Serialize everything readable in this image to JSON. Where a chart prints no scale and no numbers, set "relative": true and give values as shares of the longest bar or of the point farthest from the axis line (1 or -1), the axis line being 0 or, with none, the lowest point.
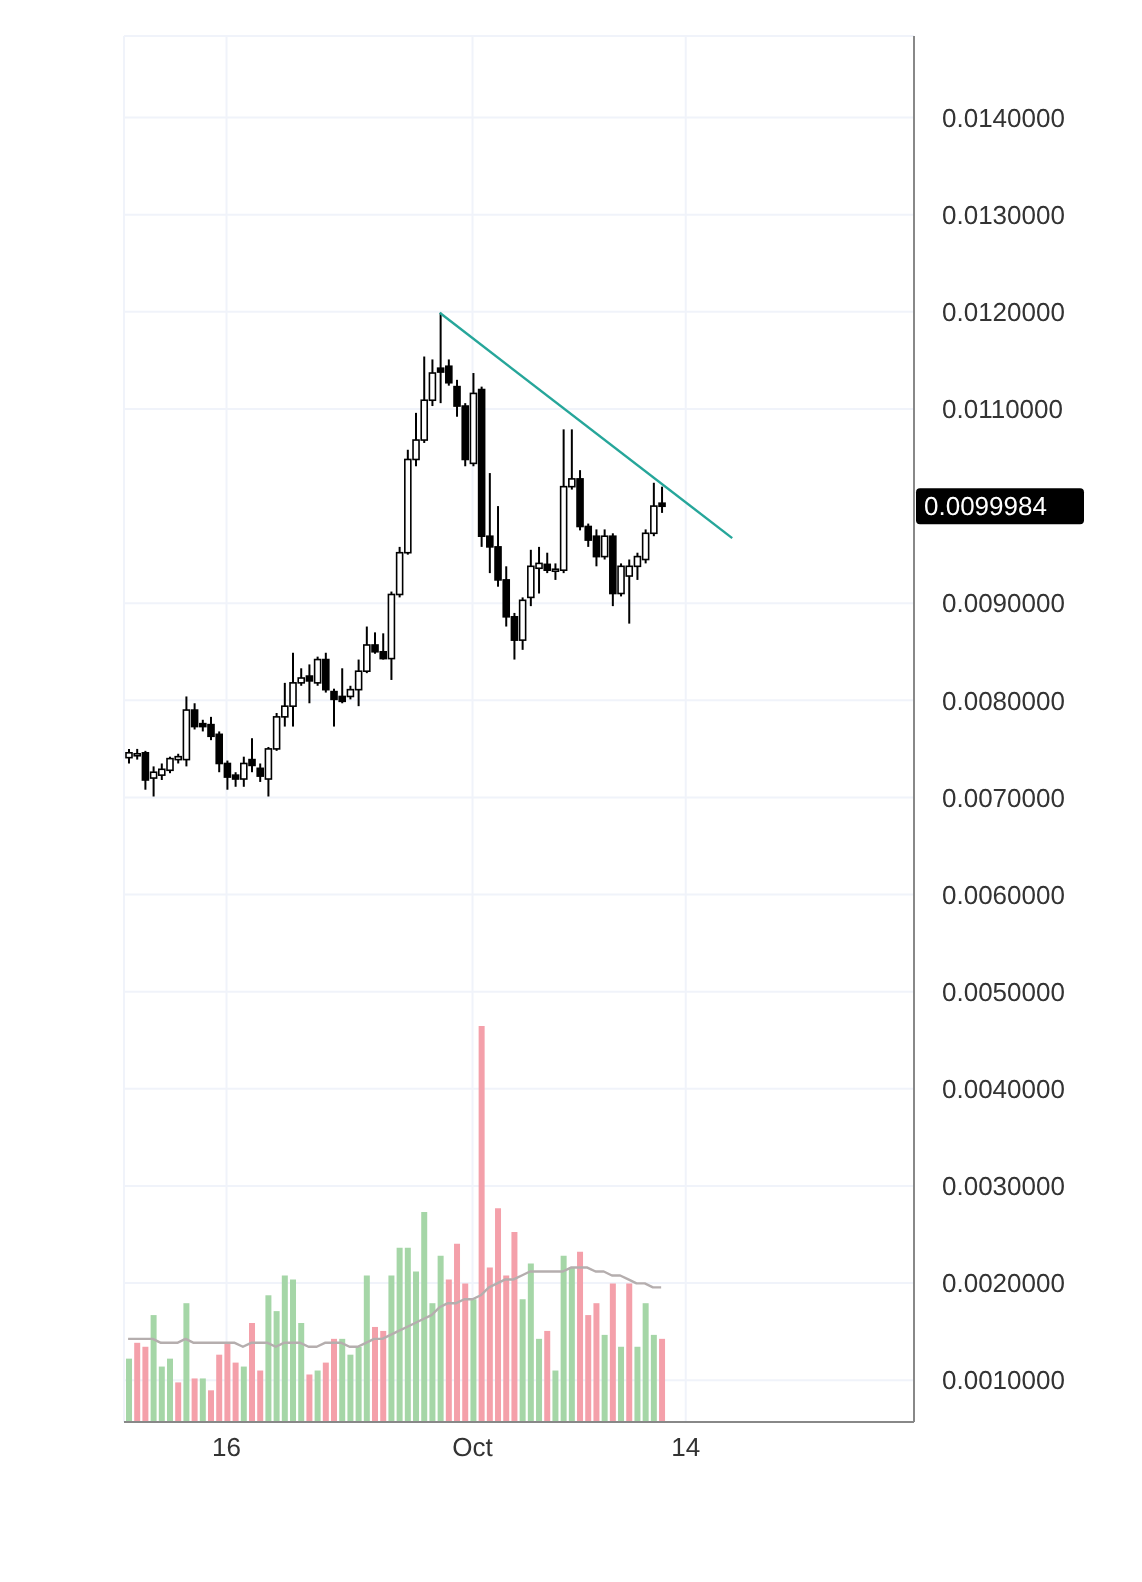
{
  "chart_data": [
    {
      "type": "candlestick",
      "grid": true,
      "x": [
        "--09-10T00:00",
        "--09-10T12:00",
        "--09-11T00:00",
        "--09-11T12:00",
        "--09-12T00:00",
        "--09-12T12:00",
        "--09-13T00:00",
        "--09-13T12:00",
        "--09-14T00:00",
        "--09-14T12:00",
        "--09-15T00:00",
        "--09-15T12:00",
        "--09-16T00:00",
        "--09-16T12:00",
        "--09-17T00:00",
        "--09-17T12:00",
        "--09-18T00:00",
        "--09-18T12:00",
        "--09-19T00:00",
        "--09-19T12:00",
        "--09-20T00:00",
        "--09-20T12:00",
        "--09-21T00:00",
        "--09-21T12:00",
        "--09-22T00:00",
        "--09-22T12:00",
        "--09-23T00:00",
        "--09-23T12:00",
        "--09-24T00:00",
        "--09-24T12:00",
        "--09-25T00:00",
        "--09-25T12:00",
        "--09-26T00:00",
        "--09-26T12:00",
        "--09-27T00:00",
        "--09-27T12:00",
        "--09-28T00:00",
        "--09-28T12:00",
        "--09-29T00:00",
        "--09-29T12:00",
        "--09-30T00:00",
        "--09-30T12:00",
        "--10-01T00:00",
        "--10-01T12:00",
        "--10-02T00:00",
        "--10-02T12:00",
        "--10-03T00:00",
        "--10-03T12:00",
        "--10-04T00:00",
        "--10-04T12:00",
        "--10-05T00:00",
        "--10-05T12:00",
        "--10-06T00:00",
        "--10-06T12:00",
        "--10-07T00:00",
        "--10-07T12:00",
        "--10-08T00:00",
        "--10-08T12:00",
        "--10-09T00:00",
        "--10-09T12:00",
        "--10-10T00:00",
        "--10-10T12:00",
        "--10-11T00:00",
        "--10-11T12:00",
        "--10-12T00:00",
        "--10-12T12:00"
      ],
      "ohlc": [
        [
          0.00741,
          0.0075,
          0.00735,
          0.00746
        ],
        [
          0.00744,
          0.0075,
          0.00739,
          0.00745
        ],
        [
          0.00746,
          0.00748,
          0.00708,
          0.00718
        ],
        [
          0.0072,
          0.00732,
          0.00701,
          0.00726
        ],
        [
          0.00723,
          0.00735,
          0.00718,
          0.00729
        ],
        [
          0.00728,
          0.00742,
          0.00725,
          0.0074
        ],
        [
          0.00739,
          0.00745,
          0.00735,
          0.00742
        ],
        [
          0.00739,
          0.00804,
          0.00732,
          0.0079
        ],
        [
          0.0079,
          0.00797,
          0.0077,
          0.00773
        ],
        [
          0.00776,
          0.0078,
          0.00768,
          0.00773
        ],
        [
          0.00775,
          0.00783,
          0.00759,
          0.00763
        ],
        [
          0.00765,
          0.00768,
          0.00726,
          0.00735
        ],
        [
          0.00735,
          0.00738,
          0.00708,
          0.00721
        ],
        [
          0.00723,
          0.00726,
          0.00711,
          0.00719
        ],
        [
          0.00719,
          0.00742,
          0.00711,
          0.00735
        ],
        [
          0.00739,
          0.00761,
          0.00726,
          0.00733
        ],
        [
          0.0073,
          0.00735,
          0.00716,
          0.00722
        ],
        [
          0.00719,
          0.00752,
          0.00701,
          0.0075
        ],
        [
          0.0075,
          0.00787,
          0.00748,
          0.00783
        ],
        [
          0.00783,
          0.00818,
          0.00773,
          0.00794
        ],
        [
          0.00794,
          0.00849,
          0.00773,
          0.00818
        ],
        [
          0.00818,
          0.00833,
          0.00815,
          0.00823
        ],
        [
          0.00825,
          0.00837,
          0.00797,
          0.0082
        ],
        [
          0.00818,
          0.00845,
          0.00815,
          0.00842
        ],
        [
          0.00842,
          0.00849,
          0.00808,
          0.00811
        ],
        [
          0.00809,
          0.00812,
          0.00773,
          0.00801
        ],
        [
          0.00804,
          0.00833,
          0.00797,
          0.00799
        ],
        [
          0.00804,
          0.00815,
          0.00801,
          0.00811
        ],
        [
          0.00811,
          0.00842,
          0.00794,
          0.0083
        ],
        [
          0.0083,
          0.00876,
          0.00828,
          0.00857
        ],
        [
          0.00857,
          0.0087,
          0.00848,
          0.0085
        ],
        [
          0.0085,
          0.00869,
          0.00842,
          0.00843
        ],
        [
          0.00843,
          0.00912,
          0.00821,
          0.00909
        ],
        [
          0.00909,
          0.00958,
          0.00906,
          0.00952
        ],
        [
          0.00952,
          0.01058,
          0.0095,
          0.01048
        ],
        [
          0.01048,
          0.01096,
          0.01041,
          0.01068
        ],
        [
          0.01068,
          0.01154,
          0.01065,
          0.01109
        ],
        [
          0.01109,
          0.01151,
          0.01103,
          0.01137
        ],
        [
          0.01142,
          0.01199,
          0.01106,
          0.01138
        ],
        [
          0.01144,
          0.01151,
          0.01124,
          0.01127
        ],
        [
          0.01123,
          0.0113,
          0.01092,
          0.01103
        ],
        [
          0.01103,
          0.01106,
          0.01041,
          0.01048
        ],
        [
          0.01044,
          0.01137,
          0.01041,
          0.01116
        ],
        [
          0.0112,
          0.01123,
          0.00958,
          0.00969
        ],
        [
          0.00969,
          0.01034,
          0.00931,
          0.00958
        ],
        [
          0.00958,
          0.01,
          0.00917,
          0.00924
        ],
        [
          0.00924,
          0.00938,
          0.00876,
          0.00886
        ],
        [
          0.00886,
          0.0089,
          0.00842,
          0.00862
        ],
        [
          0.00862,
          0.00906,
          0.00852,
          0.00903
        ],
        [
          0.00906,
          0.00955,
          0.00897,
          0.00938
        ],
        [
          0.00936,
          0.00958,
          0.0091,
          0.00941
        ],
        [
          0.0094,
          0.00952,
          0.00931,
          0.00934
        ],
        [
          0.00933,
          0.00941,
          0.00924,
          0.00935
        ],
        [
          0.00934,
          0.01079,
          0.00931,
          0.0102
        ],
        [
          0.0102,
          0.01079,
          0.01017,
          0.01028
        ],
        [
          0.01028,
          0.01037,
          0.00975,
          0.00979
        ],
        [
          0.00979,
          0.00982,
          0.00958,
          0.00965
        ],
        [
          0.00969,
          0.00976,
          0.00938,
          0.00948
        ],
        [
          0.00948,
          0.00976,
          0.00945,
          0.00969
        ],
        [
          0.00969,
          0.00972,
          0.00897,
          0.0091
        ],
        [
          0.0091,
          0.00941,
          0.00907,
          0.00938
        ],
        [
          0.00928,
          0.00945,
          0.00879,
          0.00938
        ],
        [
          0.00938,
          0.00952,
          0.00924,
          0.00948
        ],
        [
          0.00945,
          0.00976,
          0.00941,
          0.00972
        ],
        [
          0.00972,
          0.01024,
          0.00969,
          0.01
        ],
        [
          0.01003,
          0.0102,
          0.00993,
          0.0099984
        ]
      ],
      "series": [
        {
          "type": "line",
          "color": "#26a69a",
          "x": [
            "--09-29T00:00",
            "--10-16T20:00"
          ],
          "values": [
            0.01199,
            0.00967
          ]
        }
      ],
      "xlim": [
        "--09-09T18:00",
        "--10-27T22:00"
      ],
      "xticks": [
        {
          "value": "--09-16",
          "label": "16"
        },
        {
          "value": "--10-01",
          "label": "Oct"
        },
        {
          "value": "--10-14",
          "label": "14"
        }
      ],
      "ylim": [
        0.00057,
        0.01484
      ],
      "yticks": [
        {
          "value": 0.001,
          "label": "0.0010000"
        },
        {
          "value": 0.002,
          "label": "0.0020000"
        },
        {
          "value": 0.003,
          "label": "0.0030000"
        },
        {
          "value": 0.004,
          "label": "0.0040000"
        },
        {
          "value": 0.005,
          "label": "0.0050000"
        },
        {
          "value": 0.006,
          "label": "0.0060000"
        },
        {
          "value": 0.007,
          "label": "0.0070000"
        },
        {
          "value": 0.008,
          "label": "0.0080000"
        },
        {
          "value": 0.009,
          "label": "0.0090000"
        },
        {
          "value": 0.011,
          "label": "0.0110000"
        },
        {
          "value": 0.012,
          "label": "0.0120000"
        },
        {
          "value": 0.013,
          "label": "0.0130000"
        },
        {
          "value": 0.014,
          "label": "0.0140000"
        }
      ],
      "annotations": [
        "0.0099984"
      ]
    },
    {
      "type": "bar",
      "relative": true,
      "tick_labels": false,
      "xticks": [
        {
          "value": "--09-16",
          "label": "16"
        },
        {
          "value": "--10-01",
          "label": "Oct"
        },
        {
          "value": "--10-14",
          "label": "14"
        }
      ],
      "x": [
        "--09-10T00:00",
        "--09-10T12:00",
        "--09-11T00:00",
        "--09-11T12:00",
        "--09-12T00:00",
        "--09-12T12:00",
        "--09-13T00:00",
        "--09-13T12:00",
        "--09-14T00:00",
        "--09-14T12:00",
        "--09-15T00:00",
        "--09-15T12:00",
        "--09-16T00:00",
        "--09-16T12:00",
        "--09-17T00:00",
        "--09-17T12:00",
        "--09-18T00:00",
        "--09-18T12:00",
        "--09-19T00:00",
        "--09-19T12:00",
        "--09-20T00:00",
        "--09-20T12:00",
        "--09-21T00:00",
        "--09-21T12:00",
        "--09-22T00:00",
        "--09-22T12:00",
        "--09-23T00:00",
        "--09-23T12:00",
        "--09-24T00:00",
        "--09-24T12:00",
        "--09-25T00:00",
        "--09-25T12:00",
        "--09-26T00:00",
        "--09-26T12:00",
        "--09-27T00:00",
        "--09-27T12:00",
        "--09-28T00:00",
        "--09-28T12:00",
        "--09-29T00:00",
        "--09-29T12:00",
        "--09-30T00:00",
        "--09-30T12:00",
        "--10-01T00:00",
        "--10-01T12:00",
        "--10-02T00:00",
        "--10-02T12:00",
        "--10-03T00:00",
        "--10-03T12:00",
        "--10-04T00:00",
        "--10-04T12:00",
        "--10-05T00:00",
        "--10-05T12:00",
        "--10-06T00:00",
        "--10-06T12:00",
        "--10-07T00:00",
        "--10-07T12:00",
        "--10-08T00:00",
        "--10-08T12:00",
        "--10-09T00:00",
        "--10-09T12:00",
        "--10-10T00:00",
        "--10-10T12:00",
        "--10-11T00:00",
        "--10-11T12:00",
        "--10-12T00:00",
        "--10-12T12:00"
      ],
      "xlim": [
        "--09-09T18:00",
        "--10-27T22:00"
      ],
      "series": [
        {
          "type": "bar",
          "colors": [
            "#a5d6a7",
            "#f4a0aa",
            "#f4a0aa",
            "#a5d6a7",
            "#a5d6a7",
            "#a5d6a7",
            "#f4a0aa",
            "#a5d6a7",
            "#f4a0aa",
            "#a5d6a7",
            "#f4a0aa",
            "#f4a0aa",
            "#f4a0aa",
            "#f4a0aa",
            "#a5d6a7",
            "#f4a0aa",
            "#f4a0aa",
            "#a5d6a7",
            "#a5d6a7",
            "#a5d6a7",
            "#a5d6a7",
            "#a5d6a7",
            "#f4a0aa",
            "#a5d6a7",
            "#f4a0aa",
            "#f4a0aa",
            "#a5d6a7",
            "#a5d6a7",
            "#a5d6a7",
            "#a5d6a7",
            "#f4a0aa",
            "#f4a0aa",
            "#a5d6a7",
            "#a5d6a7",
            "#a5d6a7",
            "#a5d6a7",
            "#a5d6a7",
            "#a5d6a7",
            "#a5d6a7",
            "#f4a0aa",
            "#f4a0aa",
            "#f4a0aa",
            "#a5d6a7",
            "#f4a0aa",
            "#f4a0aa",
            "#f4a0aa",
            "#f4a0aa",
            "#f4a0aa",
            "#a5d6a7",
            "#a5d6a7",
            "#a5d6a7",
            "#f4a0aa",
            "#a5d6a7",
            "#a5d6a7",
            "#a5d6a7",
            "#f4a0aa",
            "#f4a0aa",
            "#f4a0aa",
            "#a5d6a7",
            "#f4a0aa",
            "#a5d6a7",
            "#f4a0aa",
            "#a5d6a7",
            "#a5d6a7",
            "#a5d6a7",
            "#f4a0aa"
          ],
          "values": [
            0.16,
            0.2,
            0.19,
            0.27,
            0.14,
            0.16,
            0.1,
            0.3,
            0.11,
            0.11,
            0.08,
            0.17,
            0.2,
            0.15,
            0.14,
            0.25,
            0.13,
            0.32,
            0.28,
            0.37,
            0.36,
            0.25,
            0.12,
            0.13,
            0.15,
            0.21,
            0.21,
            0.17,
            0.19,
            0.37,
            0.24,
            0.23,
            0.37,
            0.44,
            0.44,
            0.38,
            0.53,
            0.3,
            0.42,
            0.36,
            0.45,
            0.35,
            0.31,
            1,
            0.39,
            0.54,
            0.37,
            0.48,
            0.31,
            0.4,
            0.21,
            0.23,
            0.13,
            0.42,
            0.39,
            0.43,
            0.27,
            0.3,
            0.22,
            0.35,
            0.19,
            0.35,
            0.19,
            0.3,
            0.22,
            0.21
          ]
        },
        {
          "type": "line",
          "color": "#b5aeae",
          "values": [
            0.21,
            0.21,
            0.21,
            0.21,
            0.2,
            0.2,
            0.2,
            0.21,
            0.2,
            0.2,
            0.2,
            0.2,
            0.2,
            0.2,
            0.19,
            0.2,
            0.2,
            0.2,
            0.19,
            0.2,
            0.2,
            0.2,
            0.19,
            0.19,
            0.2,
            0.2,
            0.2,
            0.19,
            0.19,
            0.2,
            0.21,
            0.21,
            0.22,
            0.23,
            0.24,
            0.25,
            0.26,
            0.27,
            0.29,
            0.3,
            0.3,
            0.31,
            0.31,
            0.32,
            0.34,
            0.35,
            0.36,
            0.36,
            0.37,
            0.38,
            0.38,
            0.38,
            0.38,
            0.38,
            0.39,
            0.39,
            0.39,
            0.38,
            0.38,
            0.37,
            0.37,
            0.36,
            0.35,
            0.35,
            0.34,
            0.34
          ]
        }
      ]
    }
  ]
}
